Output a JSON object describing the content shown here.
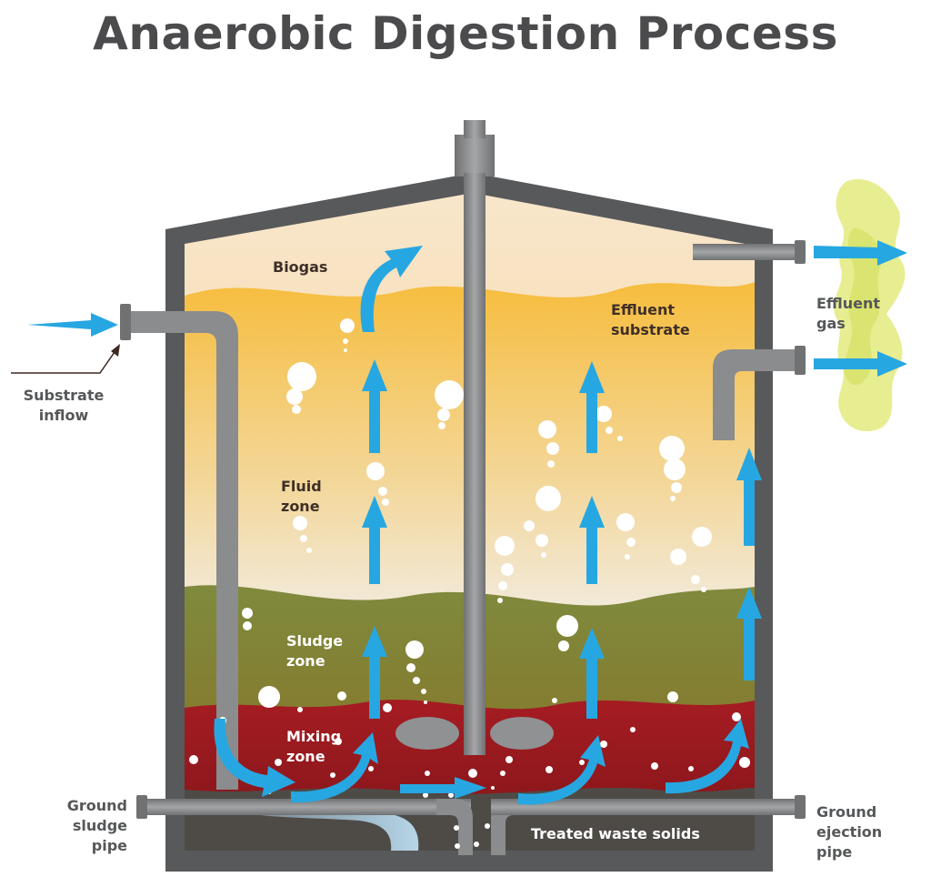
{
  "title": "Anaerobic Digestion Process",
  "labels": {
    "biogas": "Biogas",
    "effluent_substrate_1": "Effluent",
    "effluent_substrate_2": "substrate",
    "fluid_zone_1": "Fluid",
    "fluid_zone_2": "zone",
    "sludge_zone_1": "Sludge",
    "sludge_zone_2": "zone",
    "mixing_zone_1": "Mixing",
    "mixing_zone_2": "zone",
    "treated_waste": "Treated waste solids",
    "substrate_inflow_1": "Substrate",
    "substrate_inflow_2": "inflow",
    "effluent_gas_1": "Effluent",
    "effluent_gas_2": "gas",
    "ground_sludge_1": "Ground",
    "ground_sludge_2": "sludge",
    "ground_sludge_3": "pipe",
    "ground_ejection_1": "Ground",
    "ground_ejection_2": "ejection",
    "ground_ejection_3": "pipe"
  },
  "colors": {
    "tank": "#58595b",
    "pipe": "#8a8c8e",
    "arrow": "#27a7e1",
    "gas_cloud": "#e2ea7c",
    "biogas_top": "#f7dcaf",
    "fluid_gold": "#f6b83a",
    "fluid_light": "#f1ece3",
    "sludge": "#7b7d33",
    "mixing": "#981a20",
    "treated": "#4e4b47",
    "title": "#4b4b4d"
  }
}
